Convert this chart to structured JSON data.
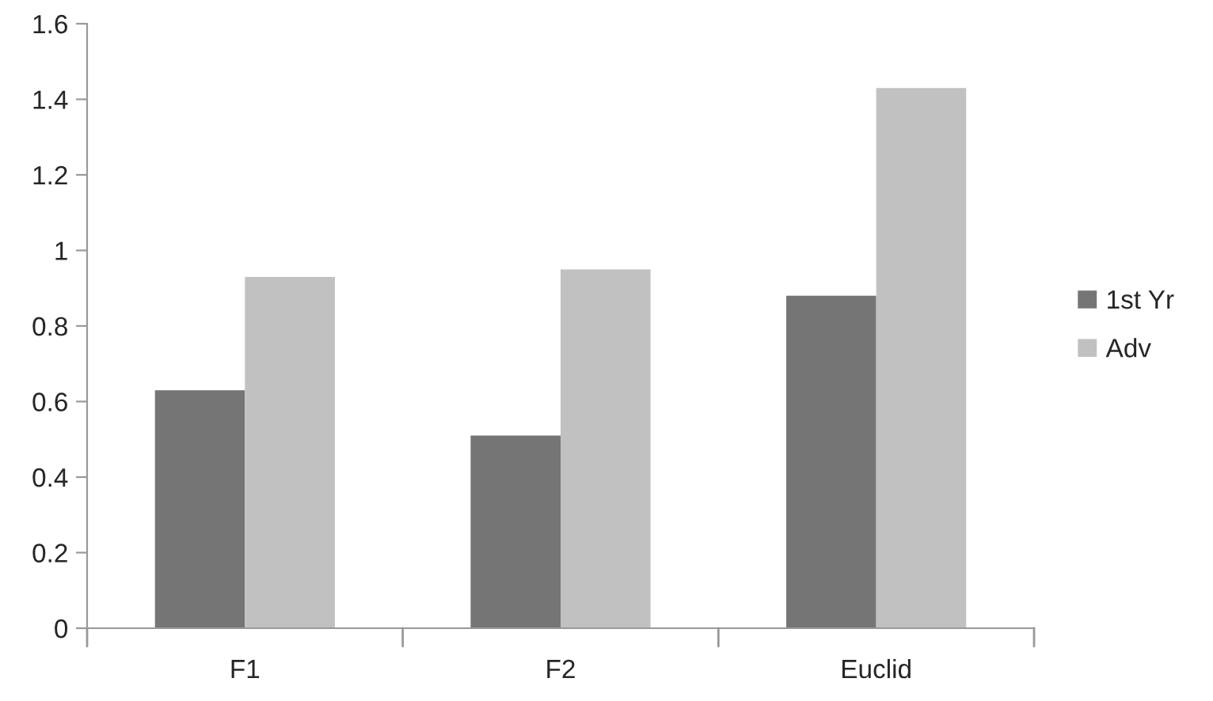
{
  "chart_data": {
    "type": "bar",
    "categories": [
      "F1",
      "F2",
      "Euclid"
    ],
    "series": [
      {
        "name": "1st Yr",
        "color": "#757575",
        "values": [
          0.63,
          0.51,
          0.88
        ]
      },
      {
        "name": "Adv",
        "color": "#c0c1c0",
        "values": [
          0.93,
          0.95,
          1.43
        ]
      }
    ],
    "ylim": [
      0,
      1.6
    ],
    "yticks": [
      0,
      0.2,
      0.4,
      0.6,
      0.8,
      1,
      1.2,
      1.4,
      1.6
    ],
    "grid": false,
    "legend": "right"
  }
}
